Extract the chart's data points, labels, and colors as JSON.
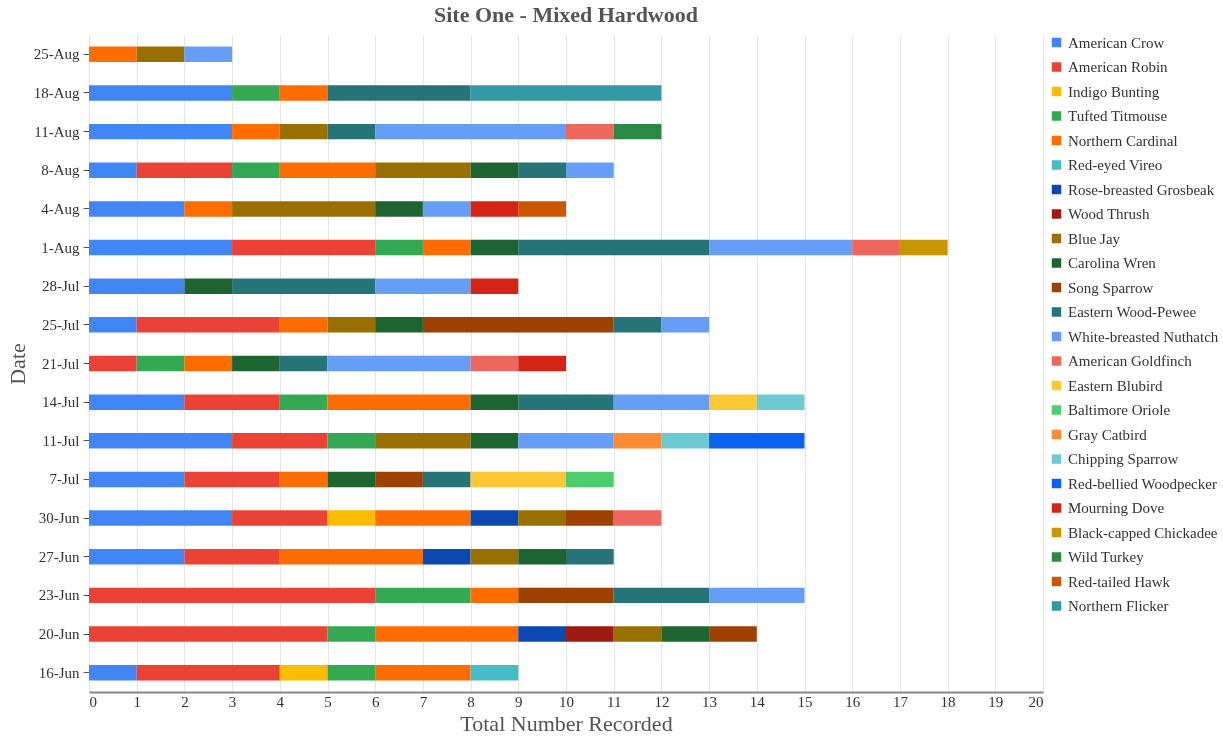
{
  "chart_data": {
    "type": "bar",
    "orientation": "horizontal",
    "stacked": true,
    "title": "Site One - Mixed Hardwood",
    "xlabel": "Total Number Recorded",
    "ylabel": "Date",
    "categories": [
      "25-Aug",
      "18-Aug",
      "11-Aug",
      "8-Aug",
      "4-Aug",
      "1-Aug",
      "28-Jul",
      "25-Jul",
      "21-Jul",
      "14-Jul",
      "11-Jul",
      "7-Jul",
      "30-Jun",
      "27-Jun",
      "23-Jun",
      "20-Jun",
      "16-Jun"
    ],
    "xlim": [
      0,
      20
    ],
    "xticks": [
      0,
      1,
      2,
      3,
      4,
      5,
      6,
      7,
      8,
      9,
      10,
      11,
      12,
      13,
      14,
      15,
      16,
      17,
      18,
      19,
      20
    ],
    "grid": "x",
    "legend": "right",
    "series": [
      {
        "name": "American Crow",
        "color": "#4285f4",
        "values": [
          null,
          3,
          3,
          1,
          2,
          3,
          2,
          1,
          null,
          2,
          3,
          2,
          3,
          2,
          null,
          null,
          1
        ]
      },
      {
        "name": "American Robin",
        "color": "#ea4335",
        "values": [
          null,
          null,
          null,
          2,
          null,
          3,
          null,
          3,
          1,
          2,
          2,
          2,
          2,
          2,
          6,
          5,
          3
        ]
      },
      {
        "name": "Indigo Bunting",
        "color": "#fbbc04",
        "values": [
          null,
          null,
          null,
          null,
          null,
          null,
          null,
          null,
          null,
          null,
          null,
          null,
          1,
          null,
          null,
          null,
          1
        ]
      },
      {
        "name": "Tufted Titmouse",
        "color": "#34a853",
        "values": [
          null,
          1,
          null,
          1,
          null,
          1,
          null,
          null,
          1,
          1,
          1,
          null,
          null,
          null,
          2,
          1,
          1
        ]
      },
      {
        "name": "Northern Cardinal",
        "color": "#ff6d01",
        "values": [
          1,
          1,
          1,
          2,
          1,
          1,
          null,
          1,
          1,
          3,
          null,
          1,
          2,
          3,
          1,
          3,
          2
        ]
      },
      {
        "name": "Red-eyed Vireo",
        "color": "#46bdc6",
        "values": [
          null,
          null,
          null,
          null,
          null,
          null,
          null,
          null,
          null,
          null,
          null,
          null,
          null,
          null,
          null,
          null,
          1
        ]
      },
      {
        "name": "Rose-breasted Grosbeak",
        "color": "#0b48b0",
        "values": [
          null,
          null,
          null,
          null,
          null,
          null,
          null,
          null,
          null,
          null,
          null,
          null,
          1,
          1,
          null,
          1,
          null
        ]
      },
      {
        "name": "Wood Thrush",
        "color": "#9e1a12",
        "values": [
          null,
          null,
          null,
          null,
          null,
          null,
          null,
          null,
          null,
          null,
          null,
          null,
          null,
          null,
          null,
          1,
          null
        ]
      },
      {
        "name": "Blue Jay",
        "color": "#997000",
        "values": [
          1,
          null,
          1,
          2,
          3,
          null,
          null,
          1,
          null,
          null,
          2,
          null,
          1,
          1,
          null,
          1,
          null
        ]
      },
      {
        "name": "Carolina Wren",
        "color": "#1e6430",
        "values": [
          null,
          null,
          null,
          1,
          1,
          1,
          1,
          1,
          1,
          1,
          1,
          1,
          null,
          1,
          null,
          1,
          null
        ]
      },
      {
        "name": "Song Sparrow",
        "color": "#9c4100",
        "values": [
          null,
          null,
          null,
          null,
          null,
          null,
          null,
          4,
          null,
          null,
          null,
          1,
          1,
          null,
          2,
          1,
          null
        ]
      },
      {
        "name": "Eastern Wood-Pewee",
        "color": "#267478",
        "values": [
          null,
          3,
          1,
          1,
          null,
          4,
          3,
          1,
          1,
          2,
          null,
          1,
          null,
          1,
          2,
          null,
          null
        ]
      },
      {
        "name": "White-breasted Nuthatch",
        "color": "#669df6",
        "values": [
          1,
          null,
          4,
          1,
          1,
          3,
          2,
          1,
          3,
          2,
          2,
          null,
          null,
          null,
          2,
          null,
          null
        ]
      },
      {
        "name": "American Goldfinch",
        "color": "#ee675c",
        "values": [
          null,
          null,
          1,
          null,
          null,
          1,
          null,
          null,
          1,
          null,
          null,
          null,
          1,
          null,
          null,
          null,
          null
        ]
      },
      {
        "name": "Eastern Blubird",
        "color": "#fcc934",
        "values": [
          null,
          null,
          null,
          null,
          null,
          null,
          null,
          null,
          null,
          1,
          null,
          2,
          null,
          null,
          null,
          null,
          null
        ]
      },
      {
        "name": "Baltimore Oriole",
        "color": "#4ecd6c",
        "values": [
          null,
          null,
          null,
          null,
          null,
          null,
          null,
          null,
          null,
          null,
          null,
          1,
          null,
          null,
          null,
          null,
          null
        ]
      },
      {
        "name": "Gray Catbird",
        "color": "#ff8c34",
        "values": [
          null,
          null,
          null,
          null,
          null,
          null,
          null,
          null,
          null,
          null,
          1,
          null,
          null,
          null,
          null,
          null,
          null
        ]
      },
      {
        "name": "Chipping Sparrow",
        "color": "#6ecad2",
        "values": [
          null,
          null,
          null,
          null,
          null,
          null,
          null,
          null,
          null,
          1,
          1,
          null,
          null,
          null,
          null,
          null,
          null
        ]
      },
      {
        "name": "Red-bellied Woodpecker",
        "color": "#0b61f0",
        "values": [
          null,
          null,
          null,
          null,
          null,
          null,
          null,
          null,
          null,
          null,
          2,
          null,
          null,
          null,
          null,
          null,
          null
        ]
      },
      {
        "name": "Mourning Dove",
        "color": "#d32416",
        "values": [
          null,
          null,
          null,
          null,
          1,
          null,
          1,
          null,
          1,
          null,
          null,
          null,
          null,
          null,
          null,
          null,
          null
        ]
      },
      {
        "name": "Black-capped Chickadee",
        "color": "#c89600",
        "values": [
          null,
          null,
          null,
          null,
          null,
          1,
          null,
          null,
          null,
          null,
          null,
          null,
          null,
          null,
          null,
          null,
          null
        ]
      },
      {
        "name": "Wild Turkey",
        "color": "#2a8a44",
        "values": [
          null,
          null,
          1,
          null,
          null,
          null,
          null,
          null,
          null,
          null,
          null,
          null,
          null,
          null,
          null,
          null,
          null
        ]
      },
      {
        "name": "Red-tailed Hawk",
        "color": "#cc5500",
        "values": [
          null,
          null,
          null,
          null,
          1,
          null,
          null,
          null,
          null,
          null,
          null,
          null,
          null,
          null,
          null,
          null,
          null
        ]
      },
      {
        "name": "Northern Flicker",
        "color": "#3399a6",
        "values": [
          null,
          4,
          null,
          null,
          null,
          null,
          null,
          null,
          null,
          null,
          null,
          null,
          null,
          null,
          null,
          null,
          null
        ]
      }
    ]
  }
}
